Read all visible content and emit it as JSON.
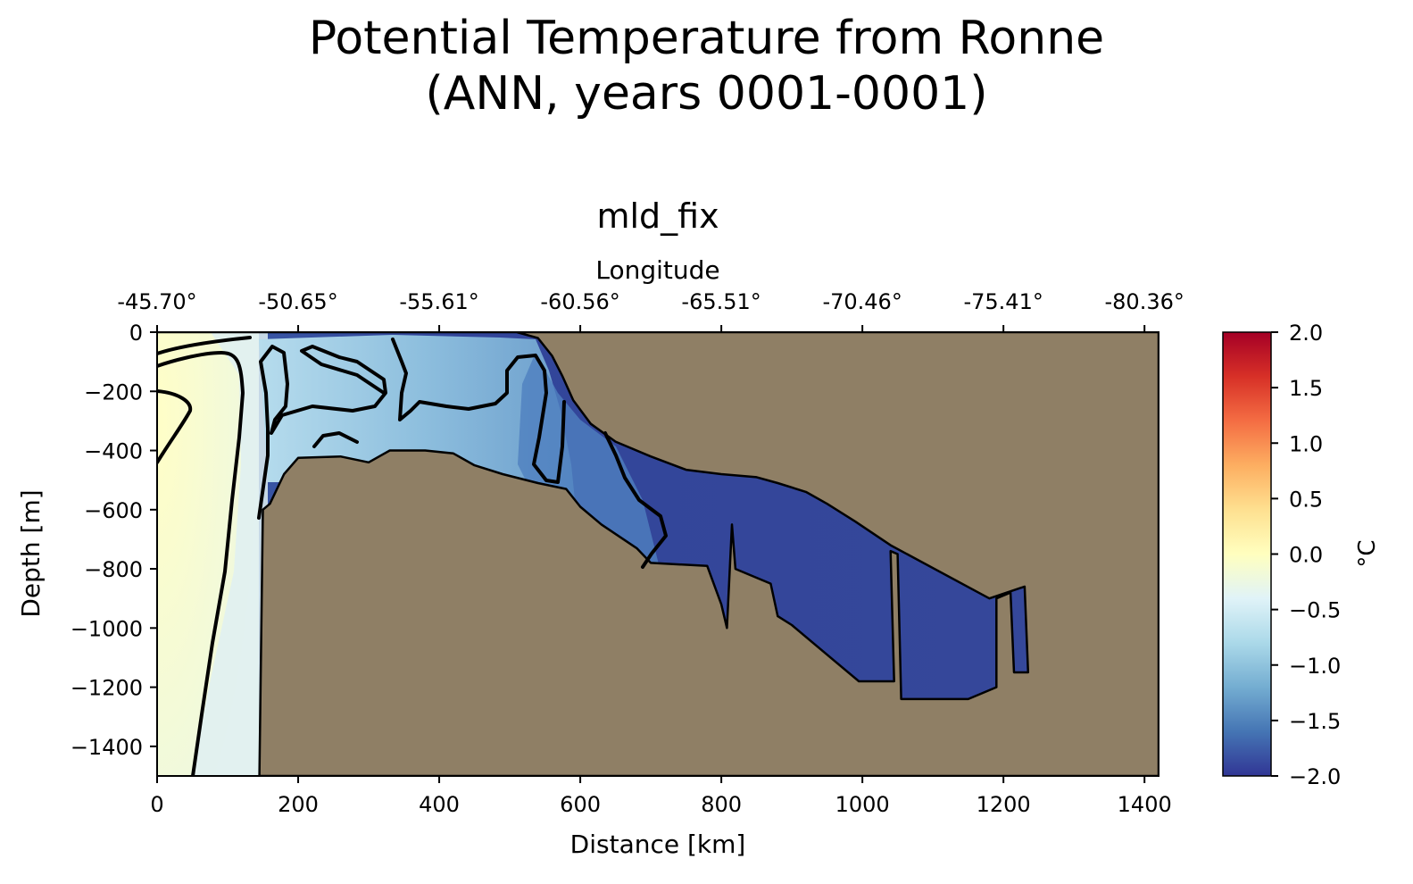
{
  "figure": {
    "title_line1": "Potential Temperature from Ronne",
    "title_line2": "(ANN, years 0001-0001)"
  },
  "chart_data": {
    "type": "heatmap",
    "title": "mld_fix",
    "xlabel": "Distance [km]",
    "ylabel": "Depth [m]",
    "top_axis_label": "Longitude",
    "xlim": [
      0,
      1420
    ],
    "ylim": [
      -1500,
      0
    ],
    "x_ticks": [
      0,
      200,
      400,
      600,
      800,
      1000,
      1200,
      1400
    ],
    "x_tick_labels": [
      "0",
      "200",
      "400",
      "600",
      "800",
      "1000",
      "1200",
      "1400"
    ],
    "y_ticks": [
      0,
      -200,
      -400,
      -600,
      -800,
      -1000,
      -1200,
      -1400
    ],
    "y_tick_labels": [
      "0",
      "−200",
      "−400",
      "−600",
      "−800",
      "−1000",
      "−1200",
      "−1400"
    ],
    "top_ticks_km": [
      0,
      200,
      400,
      600,
      800,
      1000,
      1200,
      1400
    ],
    "top_tick_labels": [
      "-45.70°",
      "-50.65°",
      "-55.61°",
      "-60.56°",
      "-65.51°",
      "-70.46°",
      "-75.41°",
      "-80.36°"
    ],
    "colorbar": {
      "label": "°C",
      "range": [
        -2.0,
        2.0
      ],
      "cmap": "RdYlBu_r",
      "ticks": [
        2.0,
        1.5,
        1.0,
        0.5,
        0.0,
        -0.5,
        -1.0,
        -1.5,
        -2.0
      ],
      "tick_labels": [
        "2.0",
        "1.5",
        "1.0",
        "0.5",
        "0.0",
        "−0.5",
        "−1.0",
        "−1.5",
        "−2.0"
      ],
      "stops": [
        "#313695",
        "#4575b4",
        "#74add1",
        "#abd9e9",
        "#e0f3f8",
        "#ffffbf",
        "#fee090",
        "#fdae61",
        "#f46d43",
        "#d73027",
        "#a50026"
      ]
    },
    "land_color": "#8f7f65",
    "water_region_temps": {
      "west_warm_column": -0.1,
      "west_transition_column": -0.4,
      "shelf_upper": -1.0,
      "shelf_mid": -1.3,
      "trough_deep": -1.8
    },
    "bathymetry_km_m": [
      [
        0,
        -1500
      ],
      [
        0,
        0
      ],
      [
        510,
        0
      ],
      [
        540,
        -20
      ],
      [
        560,
        -80
      ],
      [
        575,
        -150
      ],
      [
        590,
        -230
      ],
      [
        615,
        -310
      ],
      [
        650,
        -370
      ],
      [
        700,
        -420
      ],
      [
        750,
        -465
      ],
      [
        800,
        -480
      ],
      [
        850,
        -490
      ],
      [
        880,
        -510
      ],
      [
        920,
        -540
      ],
      [
        950,
        -580
      ],
      [
        990,
        -640
      ],
      [
        1040,
        -720
      ],
      [
        1180,
        -900
      ],
      [
        1230,
        -860
      ],
      [
        1235,
        -1150
      ],
      [
        1215,
        -1150
      ],
      [
        1210,
        -880
      ],
      [
        1190,
        -900
      ],
      [
        1190,
        -1200
      ],
      [
        1150,
        -1240
      ],
      [
        1055,
        -1240
      ],
      [
        1050,
        -750
      ],
      [
        1040,
        -740
      ],
      [
        1045,
        -1180
      ],
      [
        995,
        -1180
      ],
      [
        960,
        -1110
      ],
      [
        930,
        -1050
      ],
      [
        900,
        -990
      ],
      [
        880,
        -960
      ],
      [
        870,
        -850
      ],
      [
        820,
        -800
      ],
      [
        815,
        -650
      ],
      [
        808,
        -1000
      ],
      [
        800,
        -920
      ],
      [
        780,
        -790
      ],
      [
        700,
        -780
      ],
      [
        680,
        -730
      ],
      [
        630,
        -650
      ],
      [
        600,
        -590
      ],
      [
        580,
        -530
      ],
      [
        540,
        -510
      ],
      [
        490,
        -480
      ],
      [
        450,
        -450
      ],
      [
        420,
        -410
      ],
      [
        380,
        -400
      ],
      [
        330,
        -400
      ],
      [
        300,
        -440
      ],
      [
        260,
        -420
      ],
      [
        200,
        -425
      ],
      [
        180,
        -480
      ],
      [
        160,
        -580
      ],
      [
        150,
        -600
      ],
      [
        145,
        -1500
      ]
    ]
  }
}
